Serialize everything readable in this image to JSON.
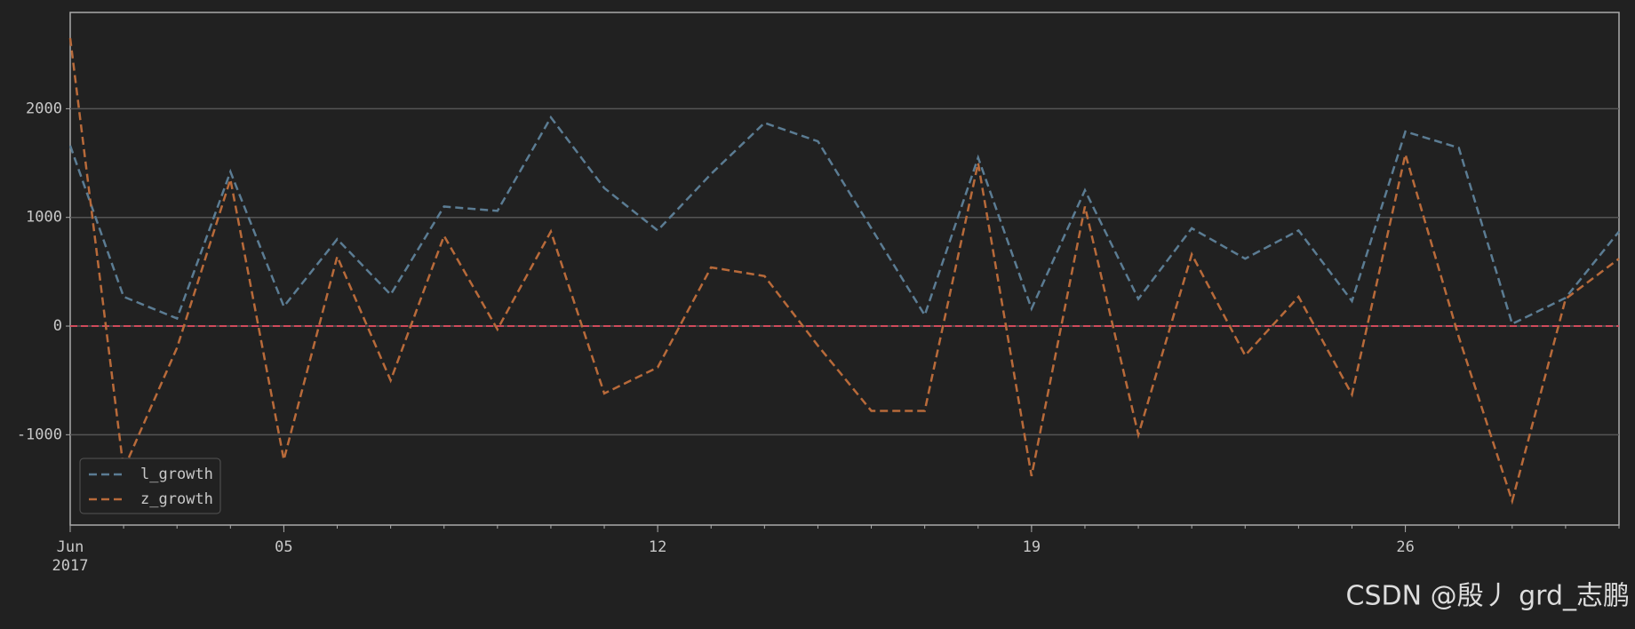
{
  "chart_data": {
    "type": "line",
    "x": [
      "2017-06-01",
      "2017-06-02",
      "2017-06-03",
      "2017-06-04",
      "2017-06-05",
      "2017-06-06",
      "2017-06-07",
      "2017-06-08",
      "2017-06-09",
      "2017-06-10",
      "2017-06-11",
      "2017-06-12",
      "2017-06-13",
      "2017-06-14",
      "2017-06-15",
      "2017-06-16",
      "2017-06-17",
      "2017-06-18",
      "2017-06-19",
      "2017-06-20",
      "2017-06-21",
      "2017-06-22",
      "2017-06-23",
      "2017-06-24",
      "2017-06-25",
      "2017-06-26",
      "2017-06-27",
      "2017-06-28",
      "2017-06-29",
      "2017-06-30"
    ],
    "series": [
      {
        "name": "l_growth",
        "color": "#5b7c93",
        "values": [
          1660,
          270,
          70,
          1420,
          180,
          800,
          290,
          1100,
          1060,
          1920,
          1270,
          880,
          1400,
          1870,
          1700,
          900,
          100,
          1550,
          160,
          1250,
          250,
          900,
          620,
          880,
          230,
          1790,
          1640,
          20,
          260,
          870
        ]
      },
      {
        "name": "z_growth",
        "color": "#b86a3a",
        "values": [
          2650,
          -1320,
          -200,
          1350,
          -1230,
          640,
          -500,
          830,
          -30,
          870,
          -620,
          -380,
          540,
          460,
          -180,
          -780,
          -780,
          1500,
          -1380,
          1100,
          -1000,
          660,
          -270,
          270,
          -630,
          1580,
          -100,
          -1610,
          250,
          620
        ]
      }
    ],
    "hlines": [
      {
        "value": 0,
        "color": "#d04a5a"
      }
    ],
    "xlim": [
      "2017-06-01",
      "2017-06-30"
    ],
    "xticks": [
      {
        "value": "2017-06-01",
        "label": "Jun\n2017"
      },
      {
        "value": "2017-06-05",
        "label": "05"
      },
      {
        "value": "2017-06-12",
        "label": "12"
      },
      {
        "value": "2017-06-19",
        "label": "19"
      },
      {
        "value": "2017-06-26",
        "label": "26"
      }
    ],
    "ylim": [
      -1831,
      2886
    ],
    "yticks": [
      -1000,
      0,
      1000,
      2000
    ],
    "grid": true,
    "legend": "lower left",
    "watermark": "CSDN @殷丿 grd_志鹏"
  }
}
